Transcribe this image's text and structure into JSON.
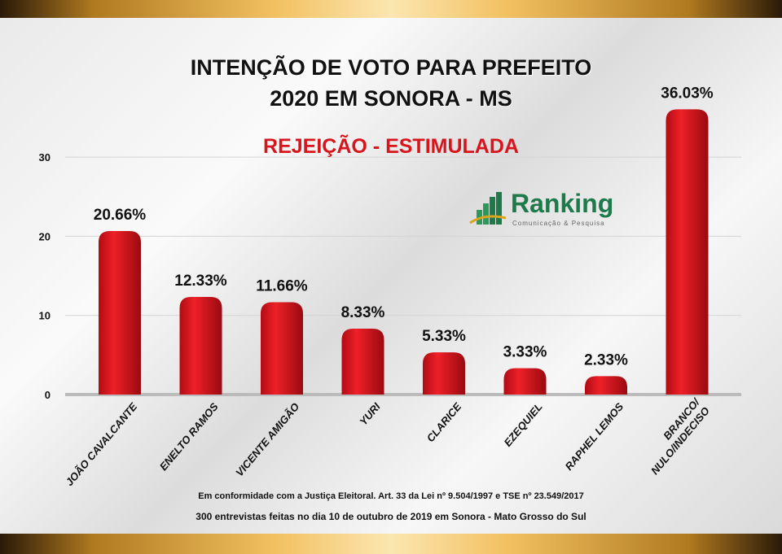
{
  "title_line1": "INTENÇÃO DE VOTO PARA PREFEITO",
  "title_line2": "2020 EM SONORA - MS",
  "subtitle": "REJEIÇÃO - ESTIMULADA",
  "logo": {
    "name": "Ranking",
    "tagline": "Comunicação & Pesquisa",
    "color": "#1e7a4a"
  },
  "footer_line1": "Em conformidade com a Justiça Eleitoral. Art. 33 da Lei nº 9.504/1997 e TSE nº 23.549/2017",
  "footer_line2": "300 entrevistas feitas no dia 10 de outubro de 2019 em Sonora - Mato Grosso do Sul",
  "chart_data": {
    "type": "bar",
    "categories": [
      "JOÃO CAVALCANTE",
      "ENELTO RAMOS",
      "VICENTE AMIGÃO",
      "YURI",
      "CLARICE",
      "EZEQUIEL",
      "RAPHEL LEMOS",
      "BRANCO/ NULO/INDECISO"
    ],
    "values": [
      20.66,
      12.33,
      11.66,
      8.33,
      5.33,
      3.33,
      2.33,
      36.03
    ],
    "data_labels": [
      "20.66%",
      "12.33%",
      "11.66%",
      "8.33%",
      "5.33%",
      "3.33%",
      "2.33%",
      "36.03%"
    ],
    "yticks": [
      0,
      10,
      20,
      30
    ],
    "ylim": [
      0,
      37
    ],
    "grid": true,
    "bar_color": "#d8141c"
  }
}
